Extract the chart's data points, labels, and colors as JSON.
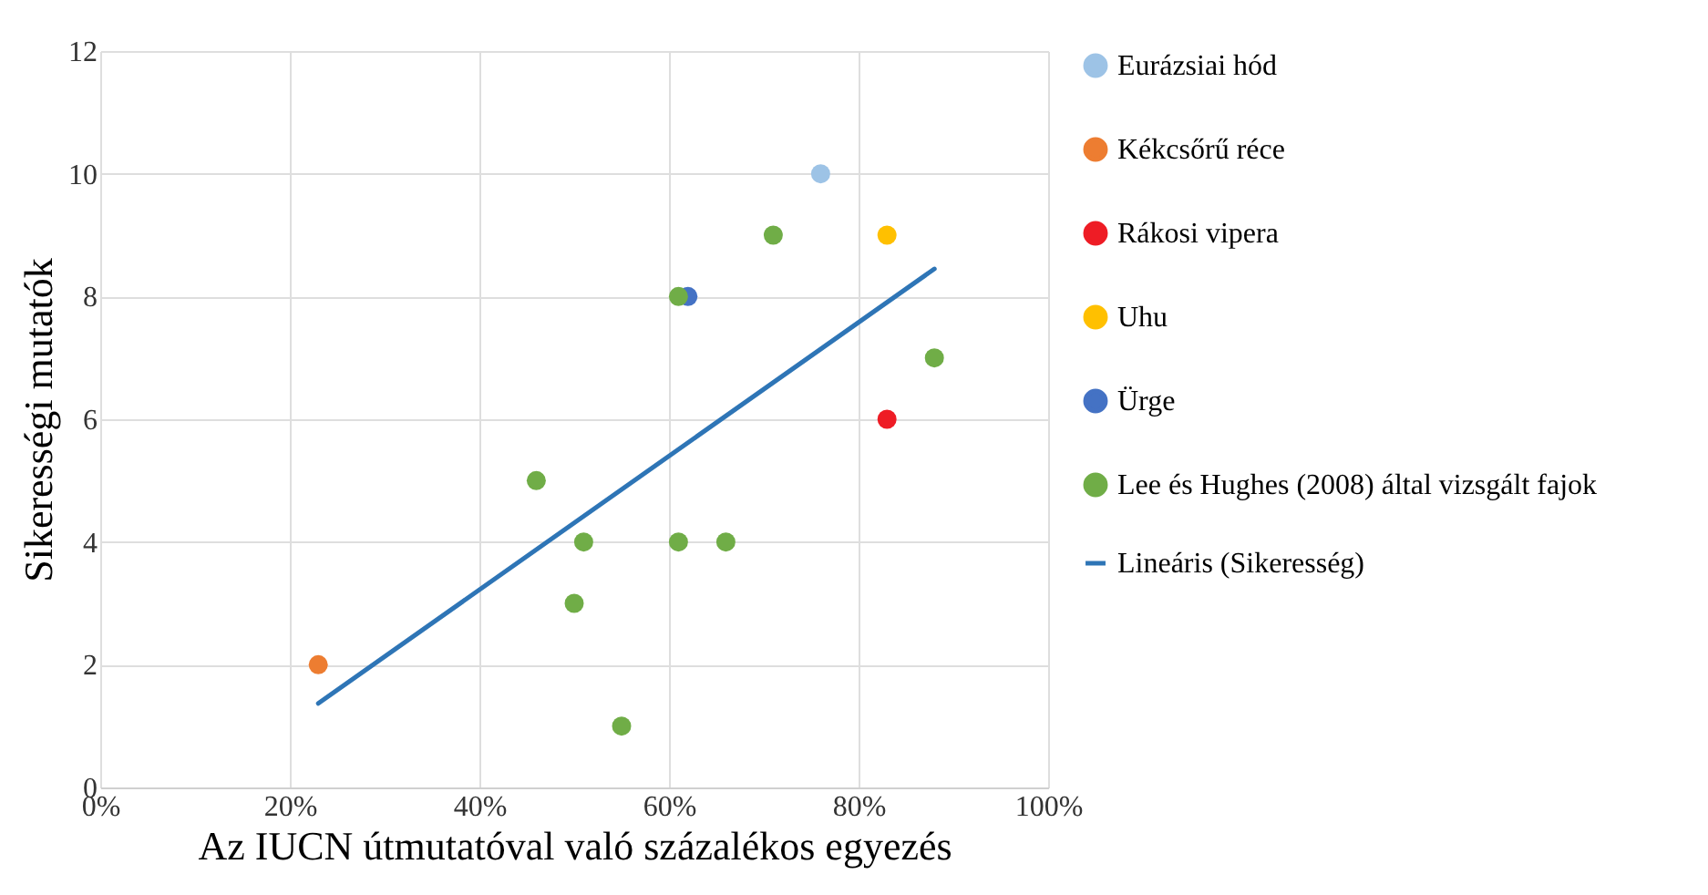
{
  "chart_data": {
    "type": "scatter",
    "xlabel": "Az IUCN útmutatóval való százalékos egyezés",
    "ylabel": "Sikerességi mutatók",
    "xlim": [
      0,
      100
    ],
    "xticks": [
      {
        "value": 0,
        "label": "0%"
      },
      {
        "value": 20,
        "label": "20%"
      },
      {
        "value": 40,
        "label": "40%"
      },
      {
        "value": 60,
        "label": "60%"
      },
      {
        "value": 80,
        "label": "80%"
      },
      {
        "value": 100,
        "label": "100%"
      }
    ],
    "ylim": [
      0,
      12
    ],
    "yticks": [
      0,
      2,
      4,
      6,
      8,
      10,
      12
    ],
    "grid": true,
    "legend": "right",
    "marker": "circle",
    "series": [
      {
        "name": "Eurázsiai hód",
        "color": "#9dc3e6",
        "x": [
          76
        ],
        "values": [
          10
        ]
      },
      {
        "name": "Kékcsőrű réce",
        "color": "#ed7d31",
        "x": [
          23
        ],
        "values": [
          2
        ]
      },
      {
        "name": "Rákosi vipera",
        "color": "#ee1c25",
        "x": [
          83
        ],
        "values": [
          6
        ]
      },
      {
        "name": "Uhu",
        "color": "#ffc000",
        "x": [
          83
        ],
        "values": [
          9
        ]
      },
      {
        "name": "Ürge",
        "color": "#4472c4",
        "x": [
          62
        ],
        "values": [
          8
        ]
      },
      {
        "name": "Lee és Hughes (2008) által vizsgált fajok",
        "color": "#70ad47",
        "x": [
          71,
          61,
          88,
          46,
          51,
          61,
          66,
          50,
          55
        ],
        "values": [
          9,
          8,
          7,
          5,
          4,
          4,
          4,
          3,
          1
        ]
      },
      {
        "name": "Lineáris (Sikeresség)",
        "type": "line",
        "marker": "none",
        "color": "#2e75b6",
        "x": [
          23,
          88
        ],
        "values": [
          1.37,
          8.45
        ]
      }
    ]
  }
}
